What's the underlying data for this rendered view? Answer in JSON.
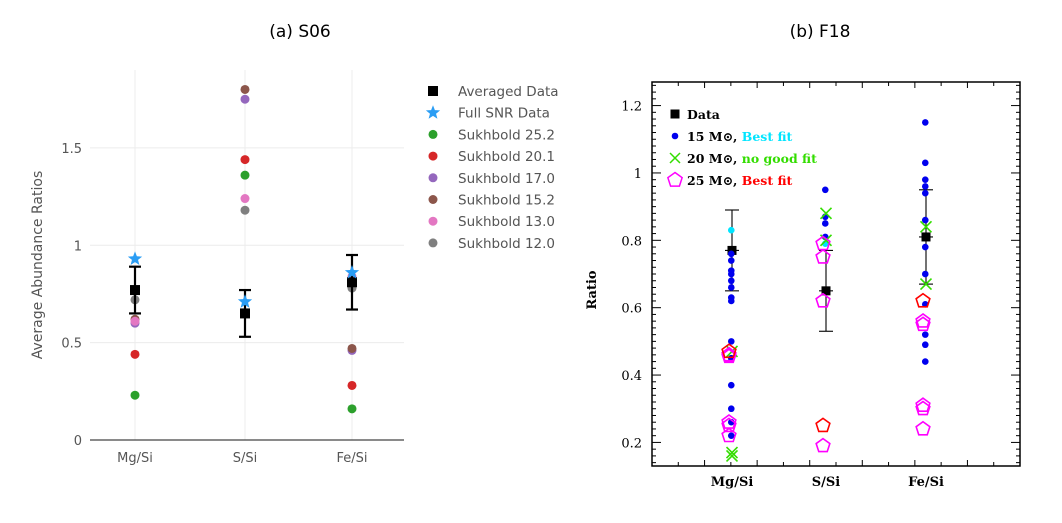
{
  "panels": {
    "a": {
      "title": "(a) S06"
    },
    "b": {
      "title": "(b) F18"
    }
  },
  "chart_data": [
    {
      "type": "scatter",
      "title": "(a) S06",
      "xlabel": "",
      "ylabel": "Average Abundance Ratios",
      "categories": [
        "Mg/Si",
        "S/Si",
        "Fe/Si"
      ],
      "ylim": [
        0,
        1.9
      ],
      "yticks": [
        0,
        0.5,
        1,
        1.5
      ],
      "ytick_labels": [
        "0",
        "0.5",
        "1",
        "1.5"
      ],
      "grid": true,
      "legend_position": "right",
      "series": [
        {
          "name": "Averaged Data",
          "marker": "square",
          "color": "#000000",
          "values": [
            0.77,
            0.65,
            0.81
          ],
          "error_low": [
            0.65,
            0.53,
            0.67
          ],
          "error_high": [
            0.89,
            0.77,
            0.95
          ]
        },
        {
          "name": "Full SNR Data",
          "marker": "star",
          "color": "#2a9df4",
          "values": [
            0.93,
            0.71,
            0.86
          ]
        },
        {
          "name": "Sukhbold 25.2",
          "marker": "circle",
          "color": "#2ca02c",
          "values": [
            0.23,
            1.36,
            0.16
          ]
        },
        {
          "name": "Sukhbold 20.1",
          "marker": "circle",
          "color": "#d62728",
          "values": [
            0.44,
            1.44,
            0.28
          ]
        },
        {
          "name": "Sukhbold 17.0",
          "marker": "circle",
          "color": "#9467bd",
          "values": [
            0.6,
            1.75,
            0.46
          ]
        },
        {
          "name": "Sukhbold 15.2",
          "marker": "circle",
          "color": "#8c564b",
          "values": [
            0.62,
            1.8,
            0.47
          ]
        },
        {
          "name": "Sukhbold 13.0",
          "marker": "circle",
          "color": "#e377c2",
          "values": [
            0.61,
            1.24,
            0.84
          ]
        },
        {
          "name": "Sukhbold 12.0",
          "marker": "circle",
          "color": "#7f7f7f",
          "values": [
            0.72,
            1.18,
            0.78
          ]
        }
      ]
    },
    {
      "type": "scatter",
      "title": "(b) F18",
      "xlabel": "",
      "ylabel": "Ratio",
      "categories": [
        "Mg/Si",
        "S/Si",
        "Fe/Si"
      ],
      "ylim": [
        0.13,
        1.27
      ],
      "yticks": [
        0.2,
        0.4,
        0.6,
        0.8,
        1,
        1.2
      ],
      "ytick_labels": [
        "0.2",
        "0.4",
        "0.6",
        "0.8",
        "1",
        "1.2"
      ],
      "grid": false,
      "legend_position": "top-left",
      "legend": [
        {
          "label": "Data",
          "suffix": "",
          "suffix_color": "#000000",
          "marker": "square",
          "color": "#000000"
        },
        {
          "label": "15 M⊙,",
          "suffix": "Best fit",
          "suffix_color": "#00e5ff",
          "marker": "circle",
          "color": "#0000ee"
        },
        {
          "label": "20 M⊙,",
          "suffix": "no good fit",
          "suffix_color": "#33dd00",
          "marker": "x",
          "color": "#33dd00"
        },
        {
          "label": "25 M⊙,",
          "suffix": "Best fit",
          "suffix_color": "#ff0000",
          "marker": "pentagon",
          "color": "#ff00ff"
        }
      ],
      "series": [
        {
          "name": "Data",
          "marker": "square",
          "color": "#000000",
          "points": [
            [
              0,
              0.77
            ],
            [
              1,
              0.65
            ],
            [
              2,
              0.81
            ]
          ],
          "error_low": [
            0.65,
            0.53,
            0.67
          ],
          "error_high": [
            0.89,
            0.77,
            0.95
          ]
        },
        {
          "name": "15 M⊙",
          "marker": "circle",
          "color": "#0000ee",
          "points": [
            [
              0,
              0.83
            ],
            [
              0,
              0.76
            ],
            [
              0,
              0.74
            ],
            [
              0,
              0.71
            ],
            [
              0,
              0.7
            ],
            [
              0,
              0.68
            ],
            [
              0,
              0.66
            ],
            [
              0,
              0.63
            ],
            [
              0,
              0.62
            ],
            [
              0,
              0.5
            ],
            [
              0,
              0.45
            ],
            [
              0,
              0.37
            ],
            [
              0,
              0.3
            ],
            [
              0,
              0.26
            ],
            [
              0,
              0.22
            ],
            [
              1,
              0.95
            ],
            [
              1,
              0.87
            ],
            [
              1,
              0.85
            ],
            [
              1,
              0.81
            ],
            [
              1,
              0.79
            ],
            [
              2,
              1.15
            ],
            [
              2,
              1.03
            ],
            [
              2,
              0.98
            ],
            [
              2,
              0.96
            ],
            [
              2,
              0.94
            ],
            [
              2,
              0.86
            ],
            [
              2,
              0.78
            ],
            [
              2,
              0.7
            ],
            [
              2,
              0.61
            ],
            [
              2,
              0.52
            ],
            [
              2,
              0.49
            ],
            [
              2,
              0.44
            ]
          ]
        },
        {
          "name": "20 M⊙",
          "marker": "x",
          "color": "#33dd00",
          "points": [
            [
              0,
              0.47
            ],
            [
              0,
              0.17
            ],
            [
              0,
              0.16
            ],
            [
              1,
              0.88
            ],
            [
              1,
              0.8
            ],
            [
              2,
              0.84
            ],
            [
              2,
              0.67
            ]
          ]
        },
        {
          "name": "25 M⊙",
          "marker": "pentagon",
          "color": "#ff00ff",
          "points": [
            [
              0,
              0.46
            ],
            [
              0,
              0.455
            ],
            [
              0,
              0.26
            ],
            [
              0,
              0.25
            ],
            [
              0,
              0.22
            ],
            [
              1,
              0.79
            ],
            [
              1,
              0.75
            ],
            [
              1,
              0.62
            ],
            [
              1,
              0.19
            ],
            [
              2,
              0.56
            ],
            [
              2,
              0.55
            ],
            [
              2,
              0.31
            ],
            [
              2,
              0.3
            ],
            [
              2,
              0.24
            ]
          ]
        },
        {
          "name": "25 M⊙ (red)",
          "marker": "pentagon",
          "color": "#ff0000",
          "points": [
            [
              0,
              0.47
            ],
            [
              1,
              0.25
            ],
            [
              2,
              0.62
            ]
          ]
        }
      ]
    }
  ]
}
